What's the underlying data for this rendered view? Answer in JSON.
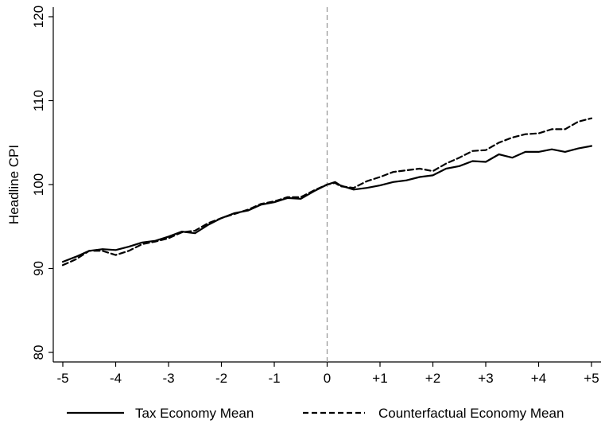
{
  "chart_data": {
    "type": "line",
    "title": "",
    "xlabel": "",
    "ylabel": "Headline CPI",
    "xlim": [
      -5,
      5
    ],
    "ylim": [
      80,
      120
    ],
    "x_ticks": [
      {
        "value": -5,
        "label": "-5"
      },
      {
        "value": -4,
        "label": "-4"
      },
      {
        "value": -3,
        "label": "-3"
      },
      {
        "value": -2,
        "label": "-2"
      },
      {
        "value": -1,
        "label": "-1"
      },
      {
        "value": 0,
        "label": "0"
      },
      {
        "value": 1,
        "label": "+1"
      },
      {
        "value": 2,
        "label": "+2"
      },
      {
        "value": 3,
        "label": "+3"
      },
      {
        "value": 4,
        "label": "+4"
      },
      {
        "value": 5,
        "label": "+5"
      }
    ],
    "y_ticks": [
      {
        "value": 80,
        "label": "80"
      },
      {
        "value": 90,
        "label": "90"
      },
      {
        "value": 100,
        "label": "100"
      },
      {
        "value": 110,
        "label": "110"
      },
      {
        "value": 120,
        "label": "120"
      }
    ],
    "grid": false,
    "vertical_reference_line": {
      "x": 0,
      "style": "dashed",
      "color": "#999999"
    },
    "legend_position": "bottom",
    "x": [
      -5,
      -4.75,
      -4.5,
      -4.25,
      -4,
      -3.75,
      -3.5,
      -3.25,
      -3,
      -2.75,
      -2.5,
      -2.25,
      -2,
      -1.75,
      -1.5,
      -1.25,
      -1,
      -0.75,
      -0.5,
      -0.25,
      0,
      0.15,
      0.25,
      0.5,
      0.75,
      1,
      1.25,
      1.5,
      1.75,
      2,
      2.25,
      2.5,
      2.75,
      3,
      3.25,
      3.5,
      3.75,
      4,
      4.25,
      4.5,
      4.75,
      5
    ],
    "series": [
      {
        "name": "Tax Economy Mean",
        "style": "solid",
        "color": "#000000",
        "values": [
          90.8,
          91.4,
          92.1,
          92.3,
          92.2,
          92.6,
          93.1,
          93.3,
          93.8,
          94.4,
          94.2,
          95.2,
          96.0,
          96.6,
          96.9,
          97.6,
          97.9,
          98.4,
          98.3,
          99.2,
          100.0,
          100.3,
          99.9,
          99.4,
          99.6,
          99.9,
          100.3,
          100.5,
          100.9,
          101.1,
          101.9,
          102.2,
          102.8,
          102.7,
          103.6,
          103.2,
          103.9,
          103.9,
          104.2,
          103.9,
          104.3,
          104.6
        ]
      },
      {
        "name": "Counterfactual Economy Mean",
        "style": "dashed",
        "color": "#000000",
        "values": [
          90.4,
          91.1,
          92.1,
          92.1,
          91.6,
          92.1,
          92.9,
          93.2,
          93.6,
          94.3,
          94.5,
          95.4,
          96.0,
          96.5,
          97.0,
          97.7,
          98.0,
          98.5,
          98.5,
          99.3,
          100.0,
          100.2,
          99.8,
          99.6,
          100.4,
          100.9,
          101.5,
          101.7,
          101.9,
          101.6,
          102.5,
          103.2,
          104.0,
          104.1,
          105.0,
          105.6,
          106.0,
          106.1,
          106.6,
          106.6,
          107.5,
          107.9
        ]
      }
    ]
  }
}
